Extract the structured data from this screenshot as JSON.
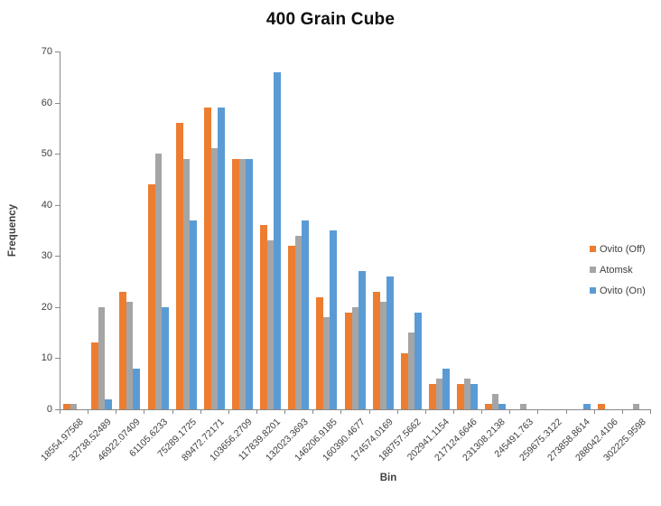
{
  "chart_data": {
    "type": "bar",
    "title": "400 Grain Cube",
    "xlabel": "Bin",
    "ylabel": "Frequency",
    "ylim": [
      0,
      70
    ],
    "yticks": [
      0,
      10,
      20,
      30,
      40,
      50,
      60,
      70
    ],
    "grid": false,
    "legend_position": "right",
    "categories": [
      "18554.97568",
      "32738.52489",
      "46922.07409",
      "61105.6233",
      "75289.1725",
      "89472.72171",
      "103656.2709",
      "117839.8201",
      "132023.3693",
      "146206.9185",
      "160390.4677",
      "174574.0169",
      "188757.5662",
      "202941.1154",
      "217124.6646",
      "231308.2138",
      "245491.763",
      "259675.3122",
      "273858.8614",
      "288042.4106",
      "302225.9598"
    ],
    "series": [
      {
        "name": "Ovito (Off)",
        "color": "#ED7D31",
        "values": [
          1,
          13,
          23,
          44,
          56,
          59,
          49,
          36,
          32,
          22,
          19,
          23,
          11,
          5,
          5,
          1,
          0,
          0,
          0,
          1,
          0
        ]
      },
      {
        "name": "Atomsk",
        "color": "#A5A5A5",
        "values": [
          1,
          20,
          21,
          50,
          49,
          51,
          49,
          33,
          34,
          18,
          20,
          21,
          15,
          6,
          6,
          3,
          1,
          0,
          0,
          0,
          1
        ]
      },
      {
        "name": "Ovito (On)",
        "color": "#5B9BD5",
        "values": [
          0,
          2,
          8,
          20,
          37,
          59,
          49,
          66,
          37,
          35,
          27,
          26,
          19,
          8,
          5,
          1,
          0,
          0,
          1,
          0,
          0
        ]
      }
    ]
  },
  "colors": {
    "axis": "#898989",
    "tick_text": "#3F3F3F",
    "title_text": "#0D0D0D",
    "background": "#FFFFFF"
  }
}
